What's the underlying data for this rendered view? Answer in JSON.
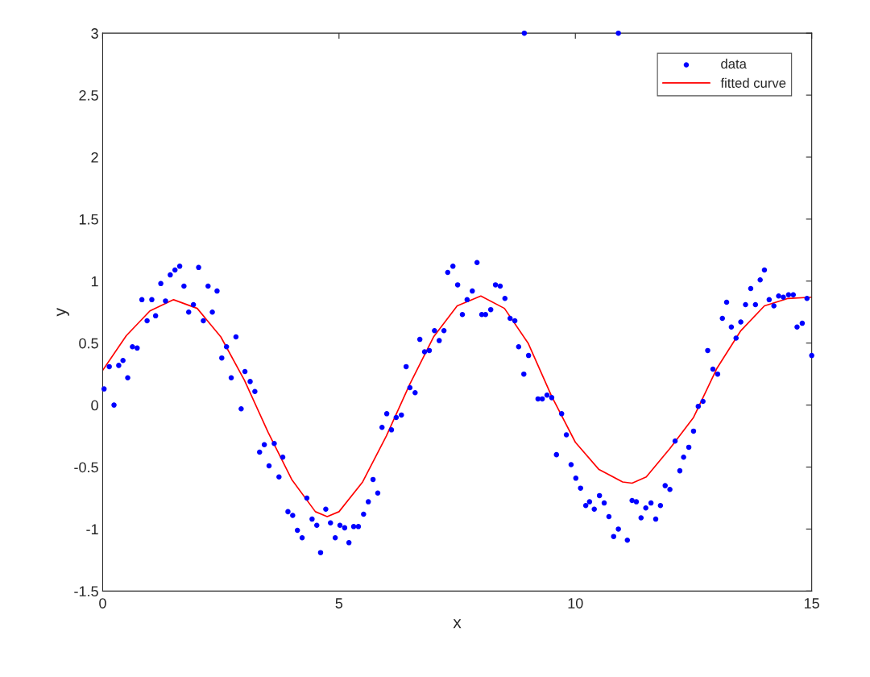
{
  "chart_data": {
    "type": "scatter",
    "xlabel": "x",
    "ylabel": "y",
    "xlim": [
      0,
      15
    ],
    "ylim": [
      -1.5,
      3
    ],
    "xticks": [
      0,
      5,
      10,
      15
    ],
    "yticks": [
      -1.5,
      -1,
      -0.5,
      0,
      0.5,
      1,
      1.5,
      2,
      2.5,
      3
    ],
    "grid": false,
    "legend": "top right",
    "series": [
      {
        "name": "data",
        "marker": "circle",
        "color": "#0000ff",
        "x": [
          0.03,
          0.14,
          0.24,
          0.34,
          0.43,
          0.53,
          0.63,
          0.73,
          0.83,
          0.94,
          1.04,
          1.12,
          1.23,
          1.33,
          1.43,
          1.53,
          1.63,
          1.72,
          1.82,
          1.92,
          2.03,
          2.13,
          2.23,
          2.32,
          2.42,
          2.52,
          2.62,
          2.72,
          2.82,
          2.93,
          3.01,
          3.12,
          3.22,
          3.32,
          3.42,
          3.52,
          3.63,
          3.73,
          3.81,
          3.92,
          4.02,
          4.12,
          4.22,
          4.32,
          4.43,
          4.53,
          4.61,
          4.72,
          4.82,
          4.92,
          5.02,
          5.12,
          5.21,
          5.31,
          5.41,
          5.52,
          5.62,
          5.72,
          5.82,
          5.91,
          6.01,
          6.11,
          6.21,
          6.32,
          6.42,
          6.5,
          6.61,
          6.71,
          6.81,
          6.91,
          7.02,
          7.12,
          7.22,
          7.3,
          7.41,
          7.51,
          7.61,
          7.71,
          7.82,
          7.92,
          8.02,
          8.1,
          8.21,
          8.31,
          8.41,
          8.51,
          8.62,
          8.72,
          8.8,
          8.91,
          8.92,
          9.01,
          9.21,
          9.3,
          9.4,
          9.5,
          9.6,
          9.71,
          9.81,
          9.91,
          10.01,
          10.11,
          10.22,
          10.3,
          10.4,
          10.51,
          10.61,
          10.71,
          10.81,
          10.91,
          10.91,
          11.1,
          11.2,
          11.29,
          11.39,
          11.49,
          11.6,
          11.7,
          11.8,
          11.9,
          12.0,
          12.11,
          12.21,
          12.29,
          12.4,
          12.5,
          12.6,
          12.7,
          12.8,
          12.91,
          13.01,
          13.11,
          13.2,
          13.3,
          13.4,
          13.5,
          13.6,
          13.71,
          13.81,
          13.91,
          14.0,
          14.1,
          14.2,
          14.3,
          14.4,
          14.51,
          14.61,
          14.69,
          14.8,
          14.9,
          15.0
        ],
        "values": [
          0.13,
          0.31,
          0.0,
          0.32,
          0.36,
          0.22,
          0.47,
          0.46,
          0.85,
          0.68,
          0.85,
          0.72,
          0.98,
          0.84,
          1.05,
          1.09,
          1.12,
          0.96,
          0.75,
          0.81,
          1.11,
          0.68,
          0.96,
          0.75,
          0.92,
          0.38,
          0.47,
          0.22,
          0.55,
          -0.03,
          0.27,
          0.19,
          0.11,
          -0.38,
          -0.32,
          -0.49,
          -0.31,
          -0.58,
          -0.42,
          -0.86,
          -0.89,
          -1.01,
          -1.07,
          -0.75,
          -0.92,
          -0.97,
          -1.19,
          -0.84,
          -0.95,
          -1.07,
          -0.97,
          -0.99,
          -1.11,
          -0.98,
          -0.98,
          -0.88,
          -0.78,
          -0.6,
          -0.71,
          -0.18,
          -0.07,
          -0.2,
          -0.1,
          -0.08,
          0.31,
          0.14,
          0.1,
          0.53,
          0.43,
          0.44,
          0.6,
          0.52,
          0.6,
          1.07,
          1.12,
          0.97,
          0.73,
          0.85,
          0.92,
          1.15,
          0.73,
          0.73,
          0.77,
          0.97,
          0.96,
          0.86,
          0.7,
          0.68,
          0.47,
          0.25,
          3.0,
          0.4,
          0.05,
          0.05,
          0.08,
          0.06,
          -0.4,
          -0.07,
          -0.24,
          -0.48,
          -0.59,
          -0.67,
          -0.81,
          -0.78,
          -0.84,
          -0.73,
          -0.79,
          -0.9,
          -1.06,
          -1.0,
          3.0,
          -1.09,
          -0.77,
          -0.78,
          -0.91,
          -0.83,
          -0.79,
          -0.92,
          -0.81,
          -0.65,
          -0.68,
          -0.29,
          -0.53,
          -0.42,
          -0.34,
          -0.21,
          -0.01,
          0.03,
          0.44,
          0.29,
          0.25,
          0.7,
          0.83,
          0.63,
          0.54,
          0.67,
          0.81,
          0.94,
          0.81,
          1.01,
          1.09,
          0.85,
          0.8,
          0.88,
          0.87,
          0.89,
          0.89,
          0.63,
          0.66,
          0.86,
          0.4
        ]
      },
      {
        "name": "fitted curve",
        "type": "line",
        "marker": "none",
        "line_style": "solid",
        "color": "#ff0000",
        "x": [
          0,
          0.5,
          1.0,
          1.5,
          2.0,
          2.5,
          3.0,
          3.5,
          4.0,
          4.5,
          4.75,
          5.0,
          5.5,
          6.0,
          6.5,
          7.0,
          7.5,
          8.0,
          8.5,
          9.0,
          9.5,
          10.0,
          10.5,
          11.0,
          11.2,
          11.5,
          12.0,
          12.5,
          13.0,
          13.5,
          14.0,
          14.5,
          15.0
        ],
        "values": [
          0.28,
          0.56,
          0.76,
          0.85,
          0.78,
          0.55,
          0.2,
          -0.22,
          -0.6,
          -0.86,
          -0.9,
          -0.86,
          -0.62,
          -0.25,
          0.17,
          0.55,
          0.8,
          0.88,
          0.78,
          0.5,
          0.07,
          -0.3,
          -0.52,
          -0.62,
          -0.63,
          -0.58,
          -0.35,
          -0.1,
          0.3,
          0.6,
          0.8,
          0.86,
          0.87
        ]
      }
    ]
  }
}
